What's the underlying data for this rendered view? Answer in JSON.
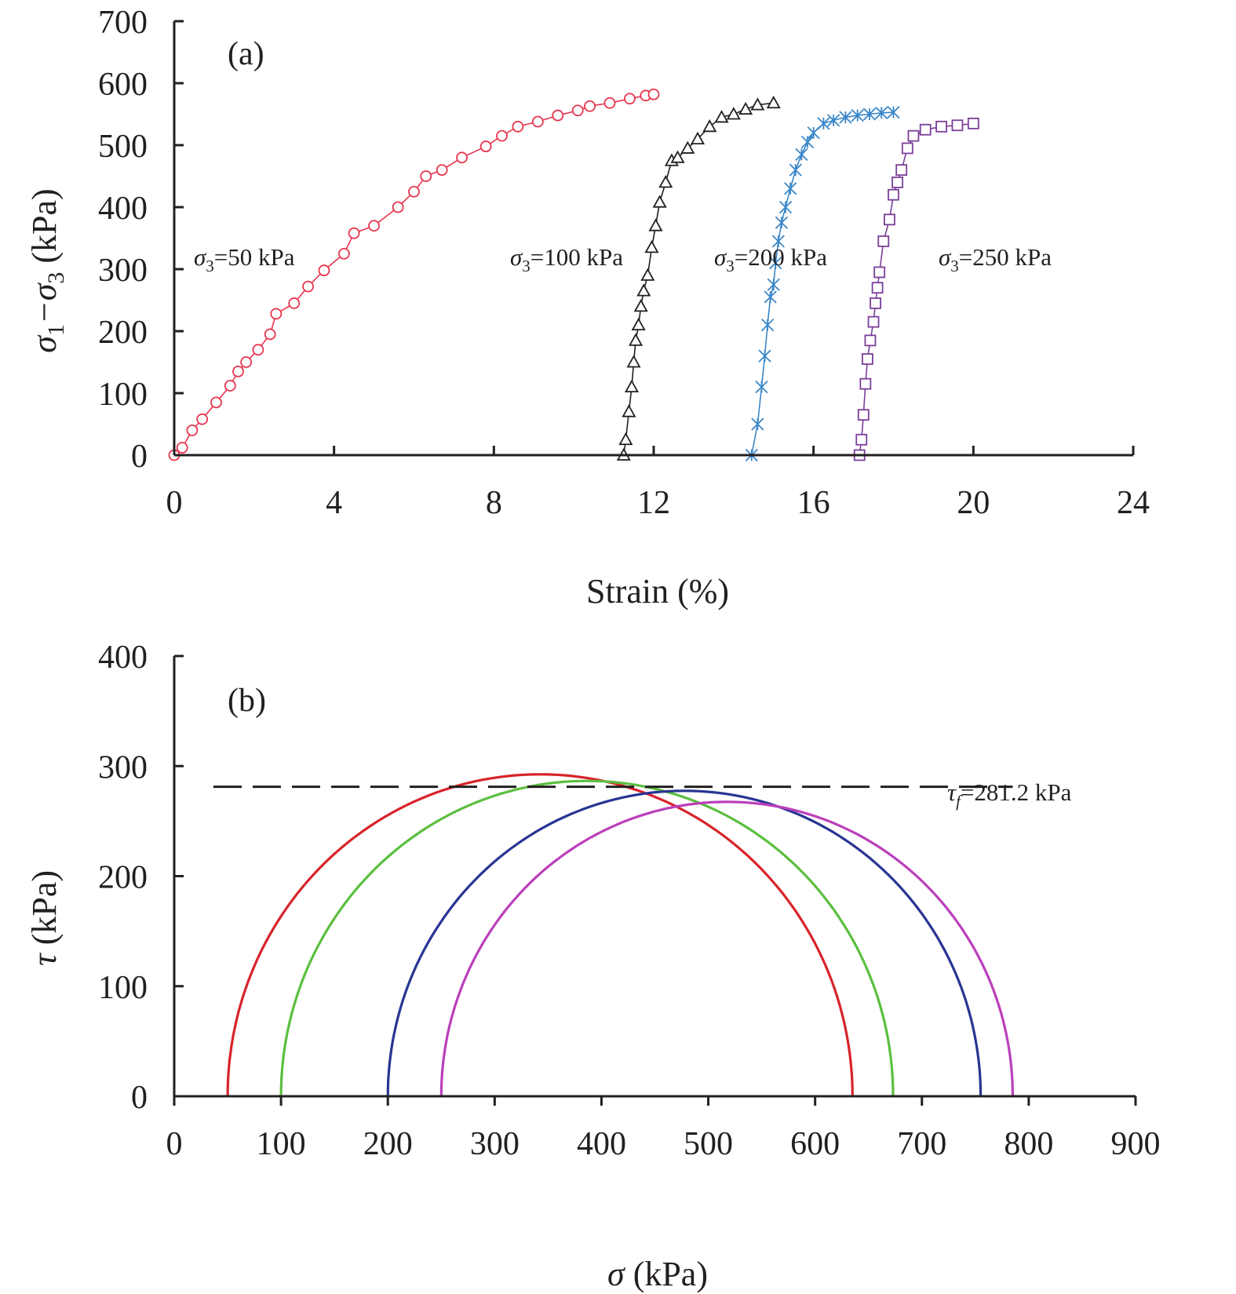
{
  "chart_data": [
    {
      "type": "line",
      "panel_label": "(a)",
      "xlabel": "Strain (%)",
      "ylabel_parts": [
        "σ",
        "1",
        "−σ",
        "3",
        " (kPa)"
      ],
      "xlim": [
        0,
        24
      ],
      "ylim": [
        0,
        700
      ],
      "xticks": [
        0,
        4,
        8,
        12,
        16,
        20,
        24
      ],
      "yticks": [
        0,
        100,
        200,
        300,
        400,
        500,
        600,
        700
      ],
      "series": [
        {
          "name": "σ3=50 kPa",
          "label_sym": "σ",
          "label_sub": "3",
          "label_rest": "=50 kPa",
          "color": "#e8344e",
          "marker": "circle",
          "x": [
            0.0,
            0.2,
            0.45,
            0.7,
            1.05,
            1.4,
            1.6,
            1.8,
            2.1,
            2.4,
            2.55,
            3.0,
            3.35,
            3.75,
            4.25,
            4.5,
            5.0,
            5.6,
            6.0,
            6.3,
            6.7,
            7.2,
            7.8,
            8.2,
            8.6,
            9.1,
            9.6,
            10.1,
            10.4,
            10.9,
            11.4,
            11.8,
            12.0
          ],
          "y": [
            0,
            12,
            40,
            58,
            85,
            112,
            135,
            150,
            170,
            195,
            228,
            245,
            272,
            298,
            325,
            358,
            370,
            400,
            425,
            450,
            460,
            480,
            498,
            515,
            530,
            538,
            548,
            556,
            563,
            568,
            575,
            580,
            582
          ]
        },
        {
          "name": "σ3=100 kPa",
          "label_sym": "σ",
          "label_sub": "3",
          "label_rest": "=100 kPa",
          "color": "#231f20",
          "marker": "triangle",
          "x": [
            11.25,
            11.3,
            11.38,
            11.45,
            11.5,
            11.55,
            11.62,
            11.68,
            11.75,
            11.85,
            11.95,
            12.05,
            12.15,
            12.3,
            12.45,
            12.6,
            12.85,
            13.1,
            13.4,
            13.7,
            14.0,
            14.3,
            14.6,
            15.0
          ],
          "y": [
            0,
            25,
            70,
            110,
            150,
            185,
            210,
            240,
            265,
            290,
            335,
            370,
            408,
            440,
            475,
            480,
            495,
            510,
            530,
            545,
            550,
            558,
            565,
            568
          ]
        },
        {
          "name": "σ3=200 kPa",
          "label_sym": "σ",
          "label_sub": "3",
          "label_rest": "=200 kPa",
          "color": "#3a87c8",
          "marker": "star",
          "x": [
            14.45,
            14.6,
            14.7,
            14.78,
            14.85,
            14.92,
            15.0,
            15.05,
            15.12,
            15.2,
            15.3,
            15.42,
            15.55,
            15.7,
            15.85,
            16.0,
            16.25,
            16.5,
            16.8,
            17.1,
            17.4,
            17.7,
            18.0
          ],
          "y": [
            0,
            50,
            110,
            160,
            210,
            255,
            275,
            310,
            345,
            375,
            400,
            430,
            460,
            485,
            505,
            520,
            535,
            540,
            545,
            548,
            550,
            552,
            553
          ]
        },
        {
          "name": "σ3=250 kPa",
          "label_sym": "σ",
          "label_sub": "3",
          "label_rest": "=250 kPa",
          "color": "#7b3f99",
          "marker": "square",
          "x": [
            17.15,
            17.2,
            17.25,
            17.3,
            17.35,
            17.42,
            17.5,
            17.55,
            17.6,
            17.65,
            17.75,
            17.9,
            18.0,
            18.1,
            18.2,
            18.35,
            18.5,
            18.8,
            19.2,
            19.6,
            20.0
          ],
          "y": [
            0,
            25,
            65,
            115,
            155,
            185,
            215,
            245,
            270,
            295,
            345,
            380,
            420,
            440,
            460,
            495,
            515,
            525,
            530,
            532,
            535
          ]
        }
      ]
    },
    {
      "type": "line",
      "panel_label": "(b)",
      "xlabel": "σ (kPa)",
      "ylabel": "τ (kPa)",
      "xlim": [
        0,
        900
      ],
      "ylim": [
        0,
        400
      ],
      "xticks": [
        0,
        100,
        200,
        300,
        400,
        500,
        600,
        700,
        800,
        900
      ],
      "yticks": [
        0,
        100,
        200,
        300,
        400
      ],
      "circles": [
        {
          "color": "#d8232a",
          "sigma3": 50,
          "sigma1": 635
        },
        {
          "color": "#5bbf3f",
          "sigma3": 100,
          "sigma1": 673
        },
        {
          "color": "#283593",
          "sigma3": 200,
          "sigma1": 755
        },
        {
          "color": "#bb3fbb",
          "sigma3": 250,
          "sigma1": 785
        }
      ],
      "envelope": {
        "value": 281.2,
        "x_range": [
          0,
          785
        ],
        "color": "#231f20",
        "style": "dashed"
      },
      "envelope_label": {
        "sym": "τ",
        "sub": "f",
        "rest": "=281.2 kPa"
      }
    }
  ]
}
